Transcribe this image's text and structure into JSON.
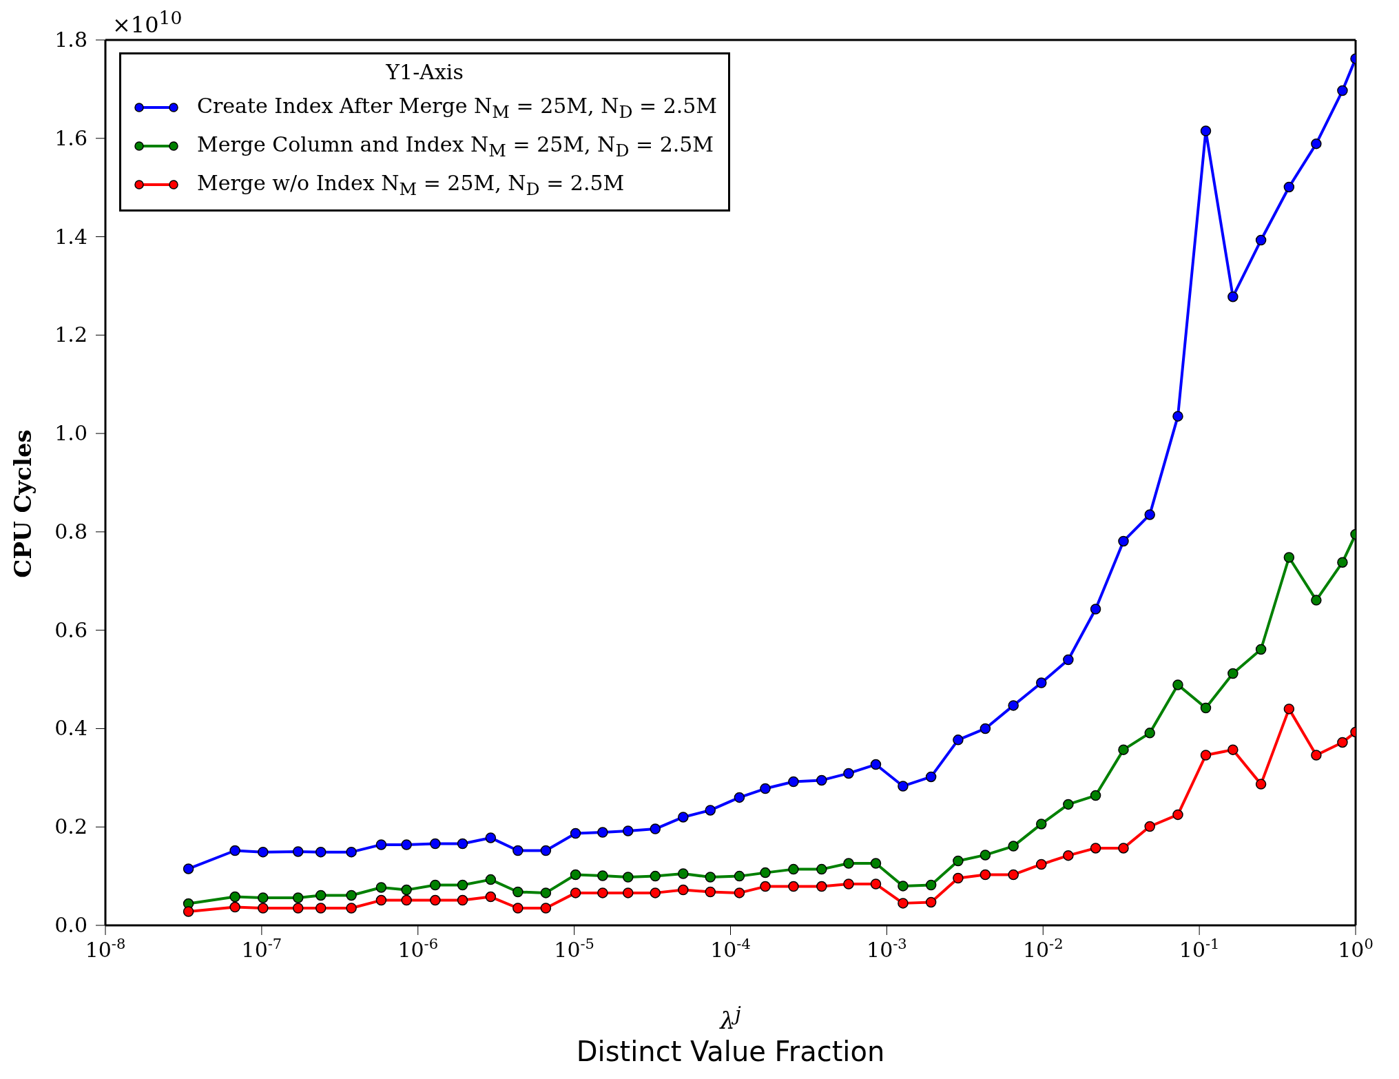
{
  "chart_data": {
    "type": "line",
    "ylabel": "CPU Cycles",
    "xlabel": "λ$^{j}$",
    "legend_title": "Y1-Axis",
    "legend": "top left",
    "grid": false,
    "marker": "circle",
    "line_style": "solid",
    "log": "x",
    "x": [
      3.4e-08,
      6.75e-08,
      1.02e-07,
      1.71e-07,
      2.39e-07,
      3.75e-07,
      5.82e-07,
      8.45e-07,
      1.29e-06,
      1.93e-06,
      2.92e-06,
      4.36e-06,
      6.58e-06,
      1.02e-05,
      1.52e-05,
      2.21e-05,
      3.3e-05,
      4.98e-05,
      7.43e-05,
      0.000114,
      0.000167,
      0.000253,
      0.000383,
      0.00057,
      0.000851,
      0.00127,
      0.00192,
      0.00286,
      0.00427,
      0.00646,
      0.00975,
      0.0145,
      0.0217,
      0.0327,
      0.0482,
      0.0729,
      0.11,
      0.164,
      0.248,
      0.375,
      0.56,
      0.824,
      1
    ],
    "series": [
      {
        "name": "Create Index After Merge N$_{M}$ = 25M, N$_{D}$ = 2.5M",
        "color": "#0000ff",
        "values": [
          0.115,
          0.152,
          0.149,
          0.15,
          0.149,
          0.149,
          0.164,
          0.164,
          0.166,
          0.166,
          0.178,
          0.152,
          0.152,
          0.187,
          0.189,
          0.192,
          0.196,
          0.22,
          0.234,
          0.26,
          0.278,
          0.292,
          0.295,
          0.309,
          0.327,
          0.283,
          0.302,
          0.377,
          0.4,
          0.447,
          0.493,
          0.54,
          0.643,
          0.781,
          0.835,
          1.035,
          1.615,
          1.278,
          1.393,
          1.501,
          1.589,
          1.697,
          1.762
        ]
      },
      {
        "name": "Merge Column and Index N$_{M}$ = 25M, N$_{D}$ = 2.5M",
        "color": "#008000",
        "values": [
          0.044,
          0.058,
          0.056,
          0.056,
          0.061,
          0.061,
          0.077,
          0.072,
          0.082,
          0.082,
          0.093,
          0.068,
          0.066,
          0.103,
          0.101,
          0.098,
          0.1,
          0.105,
          0.098,
          0.1,
          0.107,
          0.114,
          0.114,
          0.126,
          0.126,
          0.08,
          0.082,
          0.131,
          0.143,
          0.161,
          0.206,
          0.246,
          0.264,
          0.357,
          0.391,
          0.489,
          0.442,
          0.512,
          0.561,
          0.748,
          0.661,
          0.738,
          0.795
        ]
      },
      {
        "name": "Merge w/o Index N$_{M}$ = 25M, N$_{D}$ = 2.5M",
        "color": "#ff0000",
        "values": [
          0.028,
          0.037,
          0.035,
          0.035,
          0.035,
          0.035,
          0.051,
          0.051,
          0.051,
          0.051,
          0.058,
          0.035,
          0.035,
          0.066,
          0.066,
          0.066,
          0.066,
          0.072,
          0.068,
          0.066,
          0.079,
          0.079,
          0.079,
          0.084,
          0.084,
          0.045,
          0.047,
          0.096,
          0.103,
          0.103,
          0.124,
          0.142,
          0.157,
          0.157,
          0.201,
          0.225,
          0.346,
          0.357,
          0.287,
          0.44,
          0.346,
          0.372,
          0.393
        ]
      }
    ],
    "xlim": [
      1e-08,
      1
    ],
    "xticks": [
      {
        "value": 1e-08,
        "label": "10$^{-8}$"
      },
      {
        "value": 1e-07,
        "label": "10$^{-7}$"
      },
      {
        "value": 1e-06,
        "label": "10$^{-6}$"
      },
      {
        "value": 1e-05,
        "label": "10$^{-5}$"
      },
      {
        "value": 0.0001,
        "label": "10$^{-4}$"
      },
      {
        "value": 0.001,
        "label": "10$^{-3}$"
      },
      {
        "value": 0.01,
        "label": "10$^{-2}$"
      },
      {
        "value": 0.1,
        "label": "10$^{-1}$"
      },
      {
        "value": 1,
        "label": "10$^{0}$"
      }
    ],
    "ylim": [
      0,
      1.8
    ],
    "yticks": [
      {
        "value": 0,
        "label": "0.0"
      },
      {
        "value": 0.2,
        "label": "0.2"
      },
      {
        "value": 0.4,
        "label": "0.4"
      },
      {
        "value": 0.6,
        "label": "0.6"
      },
      {
        "value": 0.8,
        "label": "0.8"
      },
      {
        "value": 1.0,
        "label": "1.0"
      },
      {
        "value": 1.2,
        "label": "1.2"
      },
      {
        "value": 1.4,
        "label": "1.4"
      },
      {
        "value": 1.6,
        "label": "1.6"
      },
      {
        "value": 1.8,
        "label": "1.8"
      }
    ],
    "annotations": [
      "×10$^{10}$",
      "Distinct Value Fraction"
    ]
  }
}
